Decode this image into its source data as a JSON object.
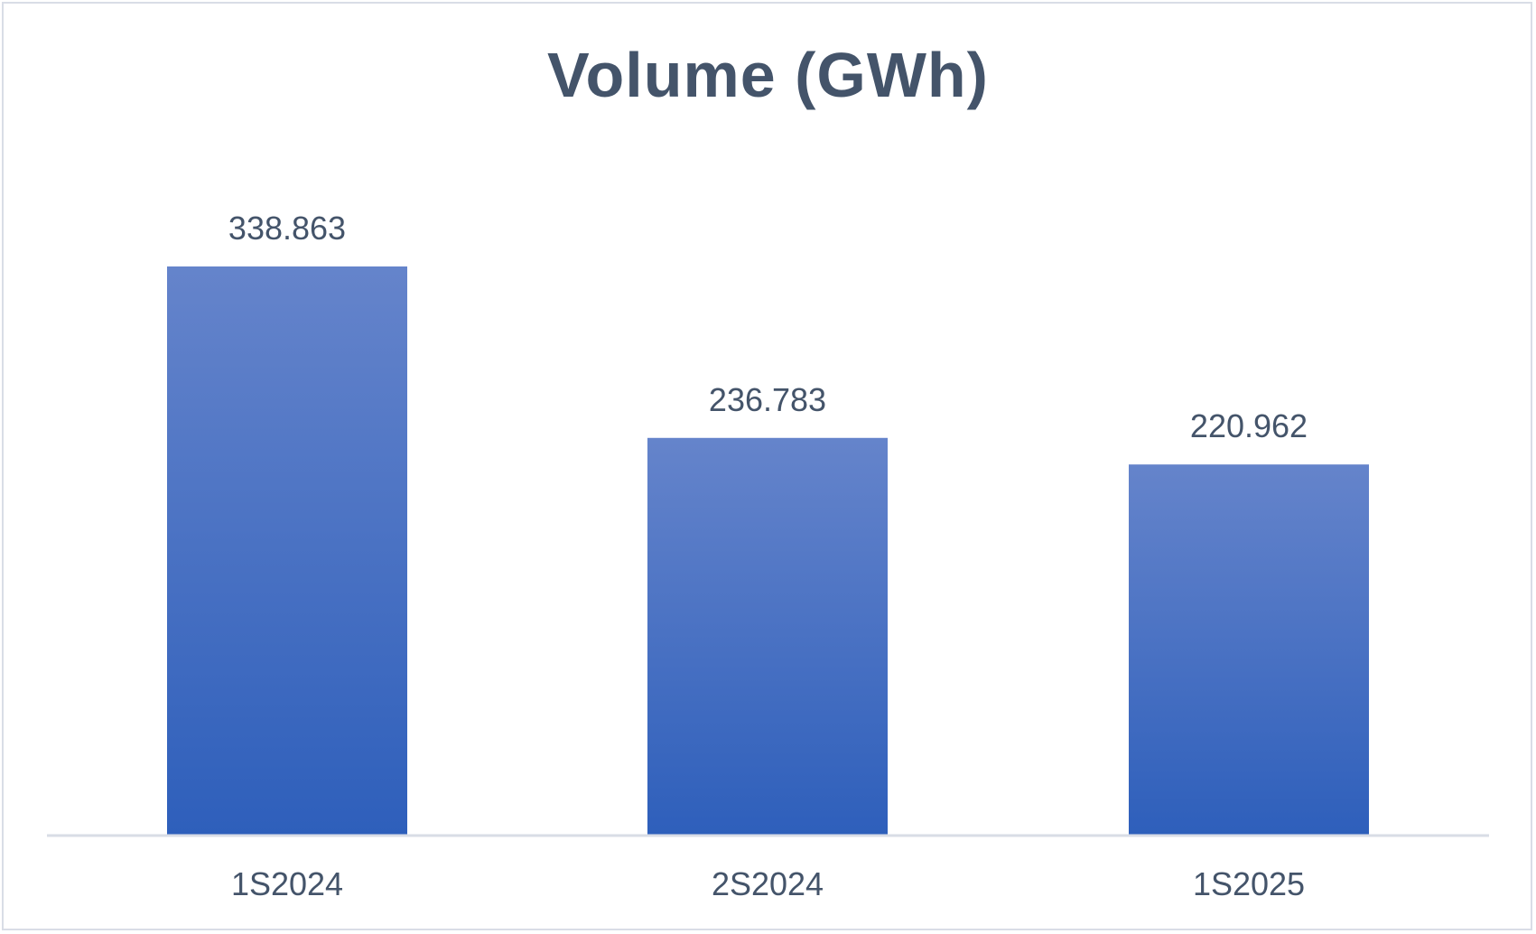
{
  "chart_data": {
    "type": "bar",
    "title": "Volume (GWh)",
    "categories": [
      "1S2024",
      "2S2024",
      "1S2025"
    ],
    "series": [
      {
        "values": [
          338.863,
          236.783,
          220.962
        ],
        "labels": [
          "338.863",
          "236.783",
          "220.962"
        ]
      }
    ],
    "ylim": [
      0,
      400
    ],
    "grid": false,
    "legend": "none",
    "colors": {
      "bar_top": "#6584cb",
      "bar_bottom": "#2e5fbb",
      "axis": "#d9dde6",
      "text": "#44546a"
    }
  }
}
